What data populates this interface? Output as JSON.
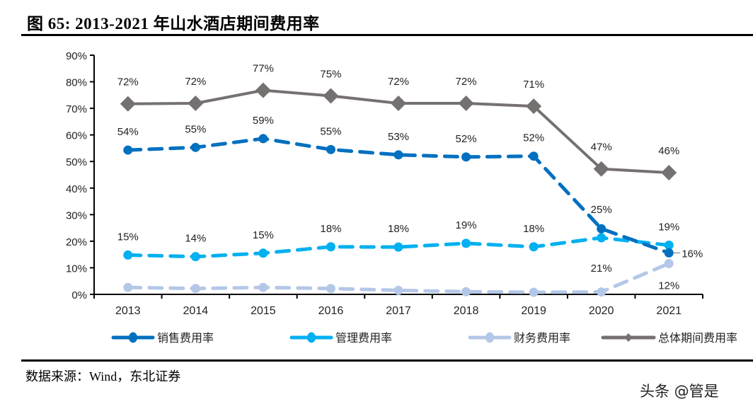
{
  "header": {
    "title": "图 65:  2013-2021 年山水酒店期间费用率"
  },
  "footer": {
    "source": "数据来源：Wind，东北证券",
    "watermark": "头条 @管是"
  },
  "chart_data": {
    "type": "line",
    "title": "2013-2021 年山水酒店期间费用率",
    "xlabel": "",
    "ylabel": "",
    "categories": [
      "2013",
      "2014",
      "2015",
      "2016",
      "2017",
      "2018",
      "2019",
      "2020",
      "2021"
    ],
    "ylim": [
      0,
      90
    ],
    "yticks": [
      "0%",
      "10%",
      "20%",
      "30%",
      "40%",
      "50%",
      "60%",
      "70%",
      "80%",
      "90%"
    ],
    "grid": false,
    "legend_position": "bottom",
    "series": [
      {
        "name": "销售费用率",
        "color": "#0070C0",
        "style": "dashed",
        "marker": "circle",
        "values": [
          54.3,
          55.3,
          58.6,
          54.5,
          52.5,
          51.7,
          52.0,
          24.7,
          15.6
        ],
        "labels": [
          "54%",
          "55%",
          "59%",
          "55%",
          "53%",
          "52%",
          "52%",
          "25%",
          "16%"
        ]
      },
      {
        "name": "管理费用率",
        "color": "#00B0F0",
        "style": "dashed",
        "marker": "circle",
        "values": [
          14.8,
          14.2,
          15.5,
          17.9,
          17.8,
          19.2,
          17.9,
          21.3,
          18.5
        ],
        "labels": [
          "15%",
          "14%",
          "15%",
          "18%",
          "18%",
          "19%",
          "18%",
          "21%",
          "19%"
        ]
      },
      {
        "name": "财务费用率",
        "color": "#B4C7E7",
        "style": "dashed",
        "marker": "circle",
        "values": [
          2.6,
          2.2,
          2.6,
          2.2,
          1.5,
          1.0,
          0.8,
          0.9,
          11.6
        ],
        "labels": [
          "",
          "",
          "",
          "",
          "",
          "",
          "",
          "",
          "12%"
        ]
      },
      {
        "name": "总体期间费用率",
        "color": "#767171",
        "style": "solid",
        "marker": "diamond",
        "values": [
          71.7,
          71.9,
          76.8,
          74.7,
          71.9,
          71.9,
          70.8,
          47.2,
          45.8
        ],
        "labels": [
          "72%",
          "72%",
          "77%",
          "75%",
          "72%",
          "72%",
          "71%",
          "47%",
          "46%"
        ]
      }
    ]
  }
}
